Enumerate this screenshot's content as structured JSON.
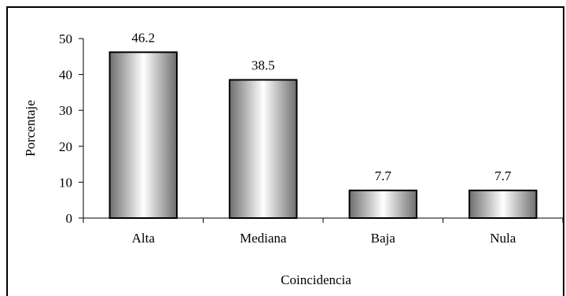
{
  "chart_data": {
    "type": "bar",
    "categories": [
      "Alta",
      "Mediana",
      "Baja",
      "Nula"
    ],
    "values": [
      46.2,
      38.5,
      7.7,
      7.7
    ],
    "value_labels": [
      "46.2",
      "38.5",
      "7.7",
      "7.7"
    ],
    "xlabel": "Coincidencia",
    "ylabel": "Porcentaje",
    "ylim": [
      0,
      50
    ],
    "yticks": [
      "0",
      "10",
      "20",
      "30",
      "40",
      "50"
    ],
    "grid": false,
    "legend": "none",
    "bar_style": "gray-gradient",
    "colors": {
      "bar_dark": "#6e6e6e",
      "bar_light": "#ffffff",
      "axis": "#000000"
    }
  }
}
